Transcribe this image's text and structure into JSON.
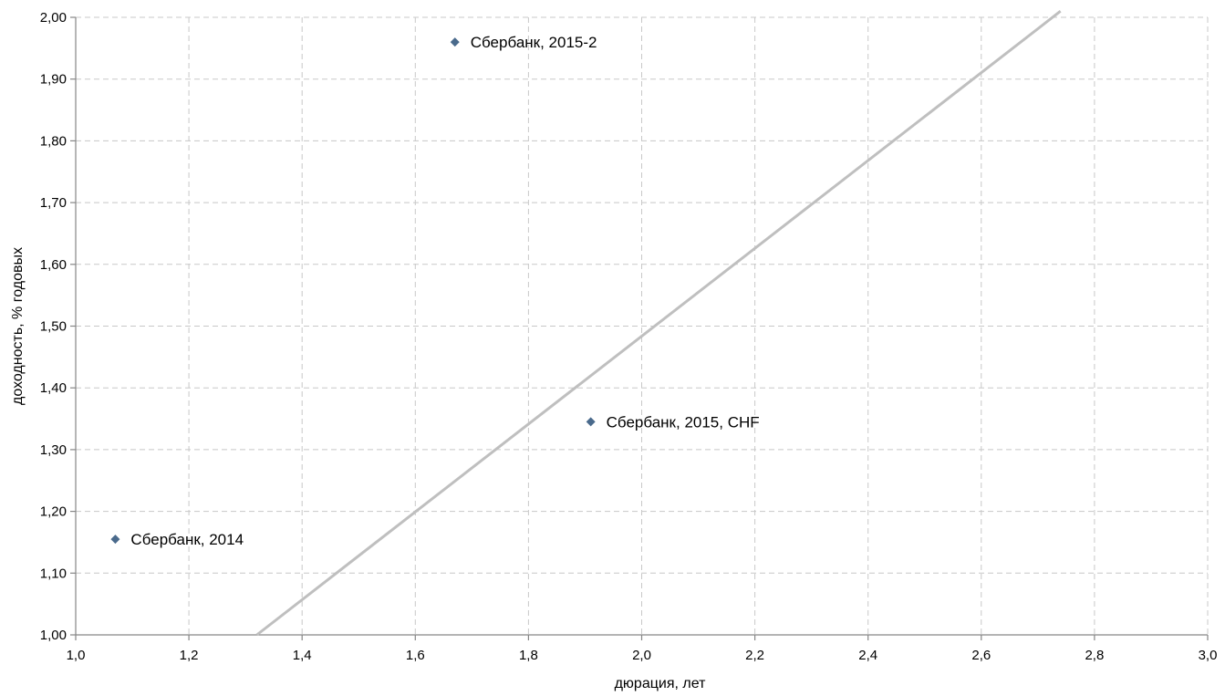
{
  "chart_data": {
    "type": "scatter",
    "title": "",
    "xlabel": "дюрация, лет",
    "ylabel": "доходность, % годовых",
    "xlim": [
      1.0,
      3.0
    ],
    "ylim": [
      1.0,
      2.0
    ],
    "x_ticks": [
      "1,0",
      "1,2",
      "1,4",
      "1,6",
      "1,8",
      "2,0",
      "2,2",
      "2,4",
      "2,6",
      "2,8",
      "3,0"
    ],
    "y_ticks": [
      "1,00",
      "1,10",
      "1,20",
      "1,30",
      "1,40",
      "1,50",
      "1,60",
      "1,70",
      "1,80",
      "1,90",
      "2,00"
    ],
    "grid": true,
    "legend": "none",
    "points": [
      {
        "label": "Сбербанк, 2014",
        "x": 1.07,
        "y": 1.155
      },
      {
        "label": "Сбербанк, 2015-2",
        "x": 1.67,
        "y": 1.96
      },
      {
        "label": "Сбербанк, 2015, CHF",
        "x": 1.91,
        "y": 1.345
      }
    ],
    "trendline": {
      "type": "linear",
      "x": [
        1.32,
        2.74
      ],
      "y": [
        1.0,
        2.01
      ]
    },
    "colors": {
      "marker": "#4a6a8c",
      "trendline": "#bfbfbf",
      "grid": "#c8c8c8",
      "axis": "#868686"
    }
  }
}
